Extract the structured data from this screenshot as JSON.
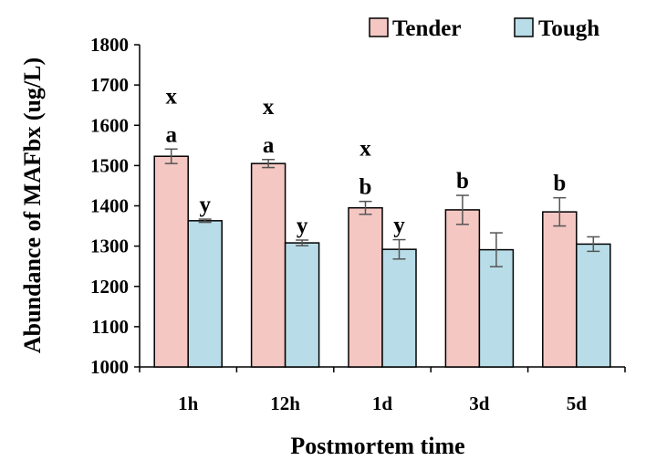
{
  "chart_data": {
    "type": "bar",
    "title": "",
    "xlabel": "Postmortem time",
    "ylabel": "Abundance of MAFbx (ug/L)",
    "ylim": [
      1000,
      1800
    ],
    "yticks": [
      1000,
      1100,
      1200,
      1300,
      1400,
      1500,
      1600,
      1700,
      1800
    ],
    "categories": [
      "1h",
      "12h",
      "1d",
      "3d",
      "5d"
    ],
    "legend_position": "top-right",
    "grid": false,
    "series": [
      {
        "name": "Tender",
        "color": "#f4c7c3",
        "values": [
          1523,
          1505,
          1395,
          1390,
          1385
        ],
        "errors": [
          18,
          10,
          16,
          36,
          35
        ],
        "letters_upper": [
          "x",
          "x",
          "x",
          "",
          ""
        ],
        "letters_lower": [
          "a",
          "a",
          "b",
          "b",
          "b"
        ]
      },
      {
        "name": "Tough",
        "color": "#b8dde8",
        "values": [
          1363,
          1308,
          1292,
          1291,
          1305
        ],
        "errors": [
          4,
          7,
          24,
          42,
          18
        ],
        "letters_upper": [
          "y",
          "y",
          "y",
          "",
          ""
        ],
        "letters_lower": [
          "",
          "",
          "",
          "",
          ""
        ]
      }
    ]
  }
}
